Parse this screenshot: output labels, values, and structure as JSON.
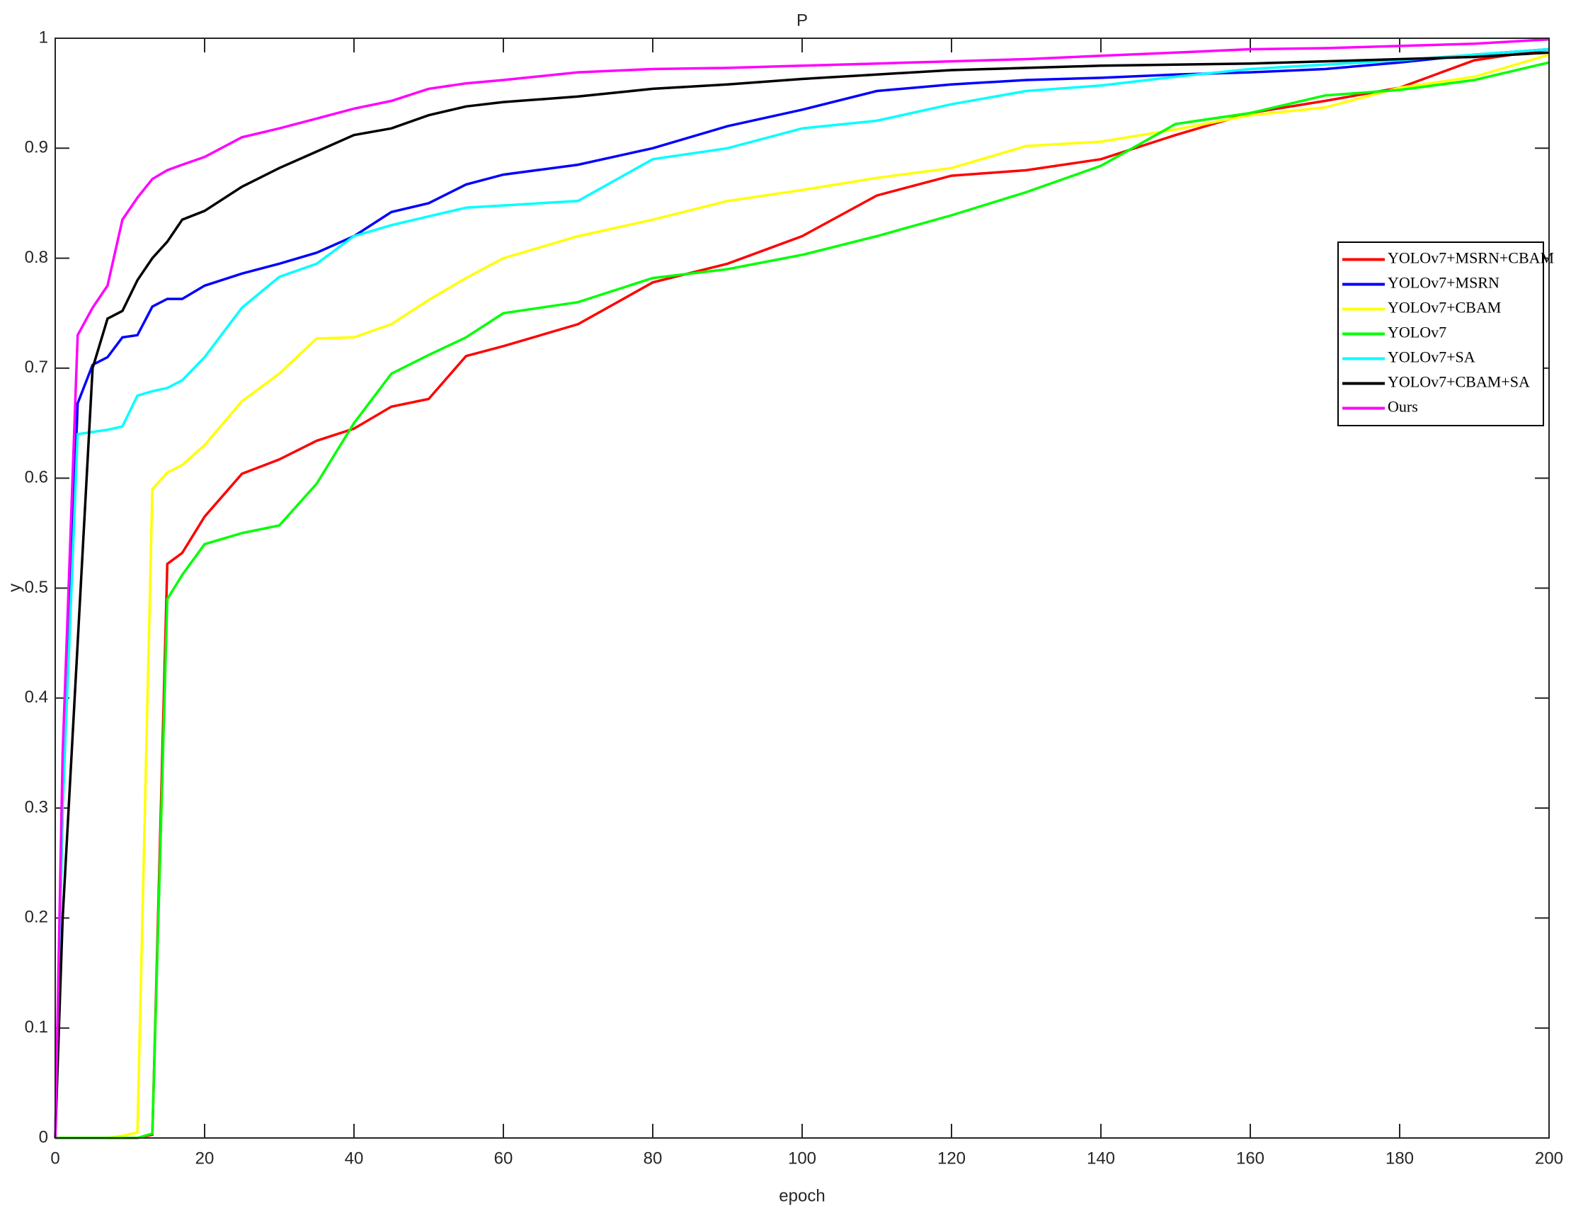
{
  "chart_data": {
    "type": "line",
    "title": "P",
    "xlabel": "epoch",
    "ylabel": "y",
    "x": [
      0,
      1,
      3,
      5,
      7,
      9,
      11,
      13,
      15,
      17,
      20,
      25,
      30,
      35,
      40,
      45,
      50,
      55,
      60,
      70,
      80,
      90,
      100,
      110,
      120,
      130,
      140,
      150,
      160,
      170,
      180,
      190,
      200
    ],
    "series": [
      {
        "name": "YOLOv7+MSRN+CBAM",
        "color": "#ff0000",
        "values": [
          0,
          0,
          0,
          0,
          0,
          0,
          0,
          0.003,
          0.522,
          0.532,
          0.565,
          0.604,
          0.617,
          0.634,
          0.645,
          0.665,
          0.672,
          0.711,
          0.72,
          0.74,
          0.778,
          0.795,
          0.82,
          0.857,
          0.875,
          0.88,
          0.89,
          0.912,
          0.932,
          0.943,
          0.955,
          0.98,
          0.99
        ]
      },
      {
        "name": "YOLOv7+MSRN",
        "color": "#0000ff",
        "values": [
          0,
          0.3,
          0.668,
          0.703,
          0.71,
          0.728,
          0.73,
          0.756,
          0.763,
          0.763,
          0.775,
          0.786,
          0.795,
          0.805,
          0.82,
          0.842,
          0.85,
          0.867,
          0.876,
          0.885,
          0.9,
          0.92,
          0.935,
          0.952,
          0.958,
          0.962,
          0.964,
          0.967,
          0.969,
          0.972,
          0.978,
          0.985,
          0.99
        ]
      },
      {
        "name": "YOLOv7+CBAM",
        "color": "#ffff00",
        "values": [
          0,
          0,
          0,
          0,
          0,
          0.002,
          0.005,
          0.59,
          0.605,
          0.612,
          0.63,
          0.67,
          0.695,
          0.727,
          0.728,
          0.74,
          0.762,
          0.782,
          0.8,
          0.82,
          0.835,
          0.852,
          0.862,
          0.873,
          0.882,
          0.902,
          0.906,
          0.917,
          0.93,
          0.937,
          0.955,
          0.965,
          0.985
        ]
      },
      {
        "name": "YOLOv7",
        "color": "#00ff00",
        "values": [
          0,
          0,
          0,
          0,
          0,
          0,
          0,
          0.004,
          0.49,
          0.512,
          0.54,
          0.55,
          0.557,
          0.595,
          0.65,
          0.695,
          0.712,
          0.728,
          0.75,
          0.76,
          0.782,
          0.79,
          0.803,
          0.82,
          0.839,
          0.86,
          0.884,
          0.922,
          0.932,
          0.948,
          0.953,
          0.962,
          0.978
        ]
      },
      {
        "name": "YOLOv7+SA",
        "color": "#00ffff",
        "values": [
          0,
          0.3,
          0.64,
          0.642,
          0.644,
          0.647,
          0.675,
          0.679,
          0.682,
          0.689,
          0.71,
          0.755,
          0.783,
          0.795,
          0.82,
          0.83,
          0.838,
          0.846,
          0.848,
          0.852,
          0.89,
          0.9,
          0.918,
          0.925,
          0.94,
          0.952,
          0.957,
          0.965,
          0.972,
          0.976,
          0.98,
          0.985,
          0.99
        ]
      },
      {
        "name": "YOLOv7+CBAM+SA",
        "color": "#000000",
        "values": [
          0,
          0.2,
          0.45,
          0.7,
          0.745,
          0.752,
          0.78,
          0.8,
          0.815,
          0.835,
          0.843,
          0.865,
          0.882,
          0.897,
          0.912,
          0.918,
          0.93,
          0.938,
          0.942,
          0.947,
          0.954,
          0.958,
          0.963,
          0.967,
          0.971,
          0.973,
          0.975,
          0.976,
          0.977,
          0.979,
          0.981,
          0.983,
          0.987
        ]
      },
      {
        "name": "Ours",
        "color": "#ff00ff",
        "values": [
          0,
          0.35,
          0.73,
          0.755,
          0.775,
          0.835,
          0.855,
          0.872,
          0.88,
          0.885,
          0.892,
          0.91,
          0.918,
          0.927,
          0.936,
          0.943,
          0.954,
          0.959,
          0.962,
          0.969,
          0.972,
          0.973,
          0.975,
          0.977,
          0.979,
          0.981,
          0.984,
          0.987,
          0.99,
          0.991,
          0.993,
          0.995,
          0.999
        ]
      }
    ],
    "xlim": [
      0,
      200
    ],
    "xticks": [
      0,
      20,
      40,
      60,
      80,
      100,
      120,
      140,
      160,
      180,
      200
    ],
    "ylim": [
      0,
      1
    ],
    "yticks": [
      0,
      0.1,
      0.2,
      0.3,
      0.4,
      0.5,
      0.6,
      0.7,
      0.8,
      0.9,
      1
    ],
    "legend": "upper right"
  }
}
